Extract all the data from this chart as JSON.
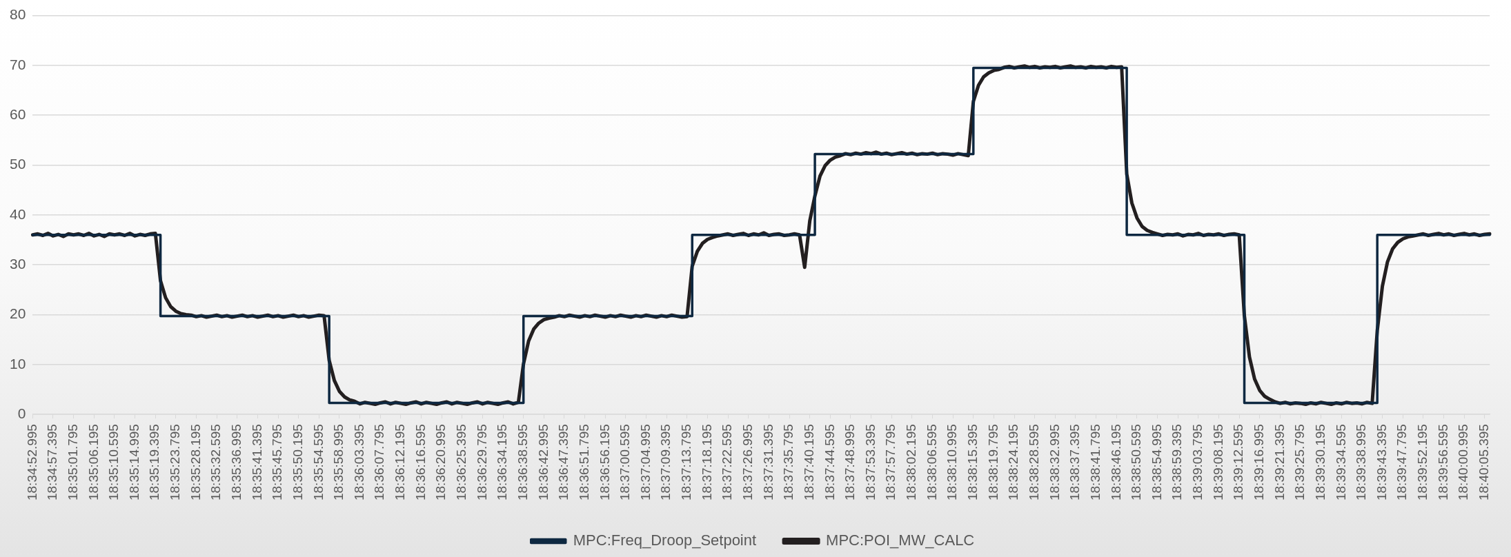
{
  "chart_data": {
    "type": "line",
    "categories": [
      "18:34:52.995",
      null,
      null,
      null,
      "18:34:57.395",
      null,
      null,
      null,
      "18:35:01.795",
      null,
      null,
      null,
      "18:35:06.195",
      null,
      null,
      null,
      "18:35:10.595",
      null,
      null,
      null,
      "18:35:14.995",
      null,
      null,
      null,
      "18:35:19.395",
      null,
      null,
      null,
      "18:35:23.795",
      null,
      null,
      null,
      "18:35:28.195",
      null,
      null,
      null,
      "18:35:32.595",
      null,
      null,
      null,
      "18:35:36.995",
      null,
      null,
      null,
      "18:35:41.395",
      null,
      null,
      null,
      "18:35:45.795",
      null,
      null,
      null,
      "18:35:50.195",
      null,
      null,
      null,
      "18:35:54.595",
      null,
      null,
      null,
      "18:35:58.995",
      null,
      null,
      null,
      "18:36:03.395",
      null,
      null,
      null,
      "18:36:07.795",
      null,
      null,
      null,
      "18:36:12.195",
      null,
      null,
      null,
      "18:36:16.595",
      null,
      null,
      null,
      "18:36:20.995",
      null,
      null,
      null,
      "18:36:25.395",
      null,
      null,
      null,
      "18:36:29.795",
      null,
      null,
      null,
      "18:36:34.195",
      null,
      null,
      null,
      "18:36:38.595",
      null,
      null,
      null,
      "18:36:42.995",
      null,
      null,
      null,
      "18:36:47.395",
      null,
      null,
      null,
      "18:36:51.795",
      null,
      null,
      null,
      "18:36:56.195",
      null,
      null,
      null,
      "18:37:00.595",
      null,
      null,
      null,
      "18:37:04.995",
      null,
      null,
      null,
      "18:37:09.395",
      null,
      null,
      null,
      "18:37:13.795",
      null,
      null,
      null,
      "18:37:18.195",
      null,
      null,
      null,
      "18:37:22.595",
      null,
      null,
      null,
      "18:37:26.995",
      null,
      null,
      null,
      "18:37:31.395",
      null,
      null,
      null,
      "18:37:35.795",
      null,
      null,
      null,
      "18:37:40.195",
      null,
      null,
      null,
      "18:37:44.595",
      null,
      null,
      null,
      "18:37:48.995",
      null,
      null,
      null,
      "18:37:53.395",
      null,
      null,
      null,
      "18:37:57.795",
      null,
      null,
      null,
      "18:38:02.195",
      null,
      null,
      null,
      "18:38:06.595",
      null,
      null,
      null,
      "18:38:10.995",
      null,
      null,
      null,
      "18:38:15.395",
      null,
      null,
      null,
      "18:38:19.795",
      null,
      null,
      null,
      "18:38:24.195",
      null,
      null,
      null,
      "18:38:28.595",
      null,
      null,
      null,
      "18:38:32.995",
      null,
      null,
      null,
      "18:38:37.395",
      null,
      null,
      null,
      "18:38:41.795",
      null,
      null,
      null,
      "18:38:46.195",
      null,
      null,
      null,
      "18:38:50.595",
      null,
      null,
      null,
      "18:38:54.995",
      null,
      null,
      null,
      "18:38:59.395",
      null,
      null,
      null,
      "18:39:03.795",
      null,
      null,
      null,
      "18:39:08.195",
      null,
      null,
      null,
      "18:39:12.595",
      null,
      null,
      null,
      "18:39:16.995",
      null,
      null,
      null,
      "18:39:21.395",
      null,
      null,
      null,
      "18:39:25.795",
      null,
      null,
      null,
      "18:39:30.195",
      null,
      null,
      null,
      "18:39:34.595",
      null,
      null,
      null,
      "18:39:38.995",
      null,
      null,
      null,
      "18:39:43.395",
      null,
      null,
      null,
      "18:39:47.795",
      null,
      null,
      null,
      "18:39:52.195",
      null,
      null,
      null,
      "18:39:56.595",
      null,
      null,
      null,
      "18:40:00.995",
      null,
      null,
      null,
      "18:40:05.395",
      null
    ],
    "ylim": [
      0,
      80
    ],
    "yticks": [
      0,
      10,
      20,
      30,
      40,
      50,
      60,
      70,
      80
    ],
    "grid": "y",
    "legend": "bottom",
    "marker": "none",
    "series": [
      {
        "name": "MPC:Freq_Droop_Setpoint",
        "type": "step",
        "color": "#0e2841",
        "values": [
          36,
          36,
          36,
          36,
          36,
          36,
          36,
          36,
          36,
          36,
          36,
          36,
          36,
          36,
          36,
          36,
          36,
          36,
          36,
          36,
          36,
          36,
          36,
          36,
          36,
          19.7,
          19.7,
          19.7,
          19.7,
          19.7,
          19.7,
          19.7,
          19.7,
          19.7,
          19.7,
          19.7,
          19.7,
          19.7,
          19.7,
          19.7,
          19.7,
          19.7,
          19.7,
          19.7,
          19.7,
          19.7,
          19.7,
          19.7,
          19.7,
          19.7,
          19.7,
          19.7,
          19.7,
          19.7,
          19.7,
          19.7,
          19.7,
          19.7,
          2.3,
          2.3,
          2.3,
          2.3,
          2.3,
          2.3,
          2.3,
          2.3,
          2.3,
          2.3,
          2.3,
          2.3,
          2.3,
          2.3,
          2.3,
          2.3,
          2.3,
          2.3,
          2.3,
          2.3,
          2.3,
          2.3,
          2.3,
          2.3,
          2.3,
          2.3,
          2.3,
          2.3,
          2.3,
          2.3,
          2.3,
          2.3,
          2.3,
          2.3,
          2.3,
          2.3,
          2.3,
          2.3,
          19.7,
          19.7,
          19.7,
          19.7,
          19.7,
          19.7,
          19.7,
          19.7,
          19.7,
          19.7,
          19.7,
          19.7,
          19.7,
          19.7,
          19.7,
          19.7,
          19.7,
          19.7,
          19.7,
          19.7,
          19.7,
          19.7,
          19.7,
          19.7,
          19.7,
          19.7,
          19.7,
          19.7,
          19.7,
          19.7,
          19.7,
          19.7,
          19.7,
          36,
          36,
          36,
          36,
          36,
          36,
          36,
          36,
          36,
          36,
          36,
          36,
          36,
          36,
          36,
          36,
          36,
          36,
          36,
          36,
          36,
          36,
          36,
          36,
          52.2,
          52.2,
          52.2,
          52.2,
          52.2,
          52.2,
          52.2,
          52.2,
          52.2,
          52.2,
          52.2,
          52.2,
          52.2,
          52.2,
          52.2,
          52.2,
          52.2,
          52.2,
          52.2,
          52.2,
          52.2,
          52.2,
          52.2,
          52.2,
          52.2,
          52.2,
          52.2,
          52.2,
          52.2,
          52.2,
          52.2,
          69.5,
          69.5,
          69.5,
          69.5,
          69.5,
          69.5,
          69.5,
          69.5,
          69.5,
          69.5,
          69.5,
          69.5,
          69.5,
          69.5,
          69.5,
          69.5,
          69.5,
          69.5,
          69.5,
          69.5,
          69.5,
          69.5,
          69.5,
          69.5,
          69.5,
          69.5,
          69.5,
          69.5,
          69.5,
          69.5,
          36,
          36,
          36,
          36,
          36,
          36,
          36,
          36,
          36,
          36,
          36,
          36,
          36,
          36,
          36,
          36,
          36,
          36,
          36,
          36,
          36,
          36,
          36,
          2.3,
          2.3,
          2.3,
          2.3,
          2.3,
          2.3,
          2.3,
          2.3,
          2.3,
          2.3,
          2.3,
          2.3,
          2.3,
          2.3,
          2.3,
          2.3,
          2.3,
          2.3,
          2.3,
          2.3,
          2.3,
          2.3,
          2.3,
          2.3,
          2.3,
          2.3,
          36,
          36,
          36,
          36,
          36,
          36,
          36,
          36,
          36,
          36,
          36,
          36,
          36,
          36,
          36,
          36,
          36,
          36,
          36,
          36,
          36,
          36,
          36
        ]
      },
      {
        "name": "MPC:POI_MW_CALC",
        "type": "line",
        "color": "#231f20",
        "values": [
          36.0,
          36.2,
          35.9,
          36.3,
          35.8,
          36.1,
          35.7,
          36.2,
          36.0,
          36.2,
          35.9,
          36.3,
          35.8,
          36.1,
          35.7,
          36.2,
          36.0,
          36.2,
          35.9,
          36.3,
          35.8,
          36.1,
          35.9,
          36.2,
          36.3,
          26.8,
          23.4,
          21.6,
          20.7,
          20.2,
          20.0,
          19.9,
          19.6,
          19.8,
          19.5,
          19.7,
          19.9,
          19.6,
          19.8,
          19.5,
          19.7,
          19.9,
          19.6,
          19.8,
          19.5,
          19.7,
          19.9,
          19.6,
          19.8,
          19.5,
          19.7,
          19.9,
          19.6,
          19.8,
          19.5,
          19.7,
          19.9,
          19.8,
          10.8,
          6.8,
          4.6,
          3.5,
          2.9,
          2.6,
          2.1,
          2.4,
          2.2,
          2.0,
          2.3,
          2.5,
          2.1,
          2.4,
          2.2,
          2.0,
          2.3,
          2.5,
          2.1,
          2.4,
          2.2,
          2.0,
          2.3,
          2.5,
          2.1,
          2.4,
          2.2,
          2.0,
          2.3,
          2.5,
          2.1,
          2.4,
          2.2,
          2.0,
          2.3,
          2.5,
          2.1,
          2.4,
          10.1,
          14.7,
          17.1,
          18.3,
          19.0,
          19.3,
          19.5,
          19.8,
          19.6,
          19.9,
          19.7,
          19.5,
          19.8,
          19.6,
          19.9,
          19.7,
          19.5,
          19.8,
          19.6,
          19.9,
          19.7,
          19.5,
          19.8,
          19.6,
          19.9,
          19.7,
          19.5,
          19.8,
          19.6,
          19.9,
          19.7,
          19.5,
          19.6,
          29.7,
          32.7,
          34.3,
          35.1,
          35.5,
          35.8,
          36.0,
          36.2,
          35.9,
          36.1,
          36.3,
          35.9,
          36.2,
          36.0,
          36.4,
          35.9,
          36.1,
          36.2,
          35.9,
          36.0,
          36.2,
          36.0,
          29.5,
          38.8,
          43.8,
          47.8,
          49.9,
          51.0,
          51.6,
          51.9,
          52.3,
          52.1,
          52.4,
          52.2,
          52.5,
          52.3,
          52.6,
          52.2,
          52.4,
          52.1,
          52.3,
          52.5,
          52.2,
          52.4,
          52.1,
          52.3,
          52.2,
          52.4,
          52.1,
          52.3,
          52.2,
          52.0,
          52.3,
          52.1,
          51.9,
          62.8,
          66.0,
          67.7,
          68.5,
          69.0,
          69.2,
          69.6,
          69.8,
          69.5,
          69.7,
          69.9,
          69.6,
          69.8,
          69.5,
          69.7,
          69.6,
          69.8,
          69.5,
          69.7,
          69.9,
          69.6,
          69.7,
          69.5,
          69.8,
          69.6,
          69.7,
          69.5,
          69.8,
          69.6,
          69.7,
          48.2,
          42.4,
          39.4,
          37.7,
          36.9,
          36.5,
          36.2,
          35.9,
          36.1,
          36.0,
          36.2,
          35.8,
          36.1,
          36.0,
          36.3,
          35.9,
          36.1,
          36.0,
          36.2,
          35.9,
          36.1,
          36.2,
          36.0,
          19.8,
          11.5,
          7.1,
          4.8,
          3.6,
          3.0,
          2.5,
          2.2,
          2.4,
          2.1,
          2.3,
          2.2,
          2.0,
          2.3,
          2.1,
          2.4,
          2.2,
          2.0,
          2.3,
          2.1,
          2.4,
          2.2,
          2.3,
          2.1,
          2.4,
          2.2,
          16.8,
          25.7,
          30.6,
          33.2,
          34.5,
          35.2,
          35.6,
          35.8,
          36.0,
          36.2,
          35.9,
          36.1,
          36.3,
          36.0,
          36.2,
          35.9,
          36.1,
          36.3,
          36.0,
          36.2,
          35.9,
          36.1,
          36.2
        ]
      }
    ]
  }
}
